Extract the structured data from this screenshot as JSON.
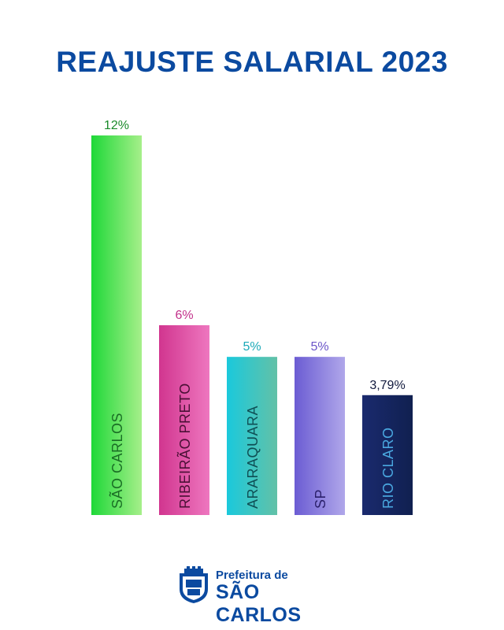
{
  "title": "REAJUSTE SALARIAL 2023",
  "logo": {
    "line1": "Prefeitura de",
    "line2": "SÃO CARLOS"
  },
  "chart_data": {
    "type": "bar",
    "title": "REAJUSTE SALARIAL 2023",
    "xlabel": "",
    "ylabel": "",
    "ylim": [
      0,
      12
    ],
    "grid": false,
    "categories": [
      "SÃO CARLOS",
      "RIBEIRÃO PRETO",
      "ARARAQUARA",
      "SP",
      "RIO CLARO"
    ],
    "values": [
      12,
      6,
      5,
      5,
      3.79
    ],
    "data_labels": [
      "12%",
      "6%",
      "5%",
      "5%",
      "3,79%"
    ],
    "colors": [
      {
        "from": "#1ed838",
        "to": "#a6ef8a",
        "label": "#1a8a2a",
        "text": "#1a6e25"
      },
      {
        "from": "#d1358f",
        "to": "#ee77bf",
        "label": "#c2308a",
        "text": "#4a1035"
      },
      {
        "from": "#1ac9dc",
        "to": "#63c1a7",
        "label": "#1ba9b8",
        "text": "#0f4f55"
      },
      {
        "from": "#6b5cd3",
        "to": "#b0a7ea",
        "label": "#6b55c8",
        "text": "#2a1f6a"
      },
      {
        "from": "#1a2a6e",
        "to": "#102050",
        "label": "#121a3e",
        "text": "#4aa8e0"
      }
    ]
  }
}
